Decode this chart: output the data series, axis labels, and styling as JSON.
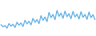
{
  "values": [
    55,
    48,
    52,
    44,
    58,
    50,
    56,
    46,
    62,
    53,
    60,
    49,
    68,
    57,
    65,
    54,
    74,
    62,
    70,
    58,
    82,
    68,
    78,
    64,
    92,
    76,
    86,
    70,
    98,
    80,
    90,
    74,
    96,
    79,
    88,
    73,
    95,
    78,
    87,
    72,
    94,
    77,
    86,
    71,
    93,
    76,
    85,
    70
  ],
  "line_color": "#5aade6",
  "background_color": "#ffffff",
  "linewidth": 0.9,
  "ylim_min": 20,
  "ylim_max": 130
}
